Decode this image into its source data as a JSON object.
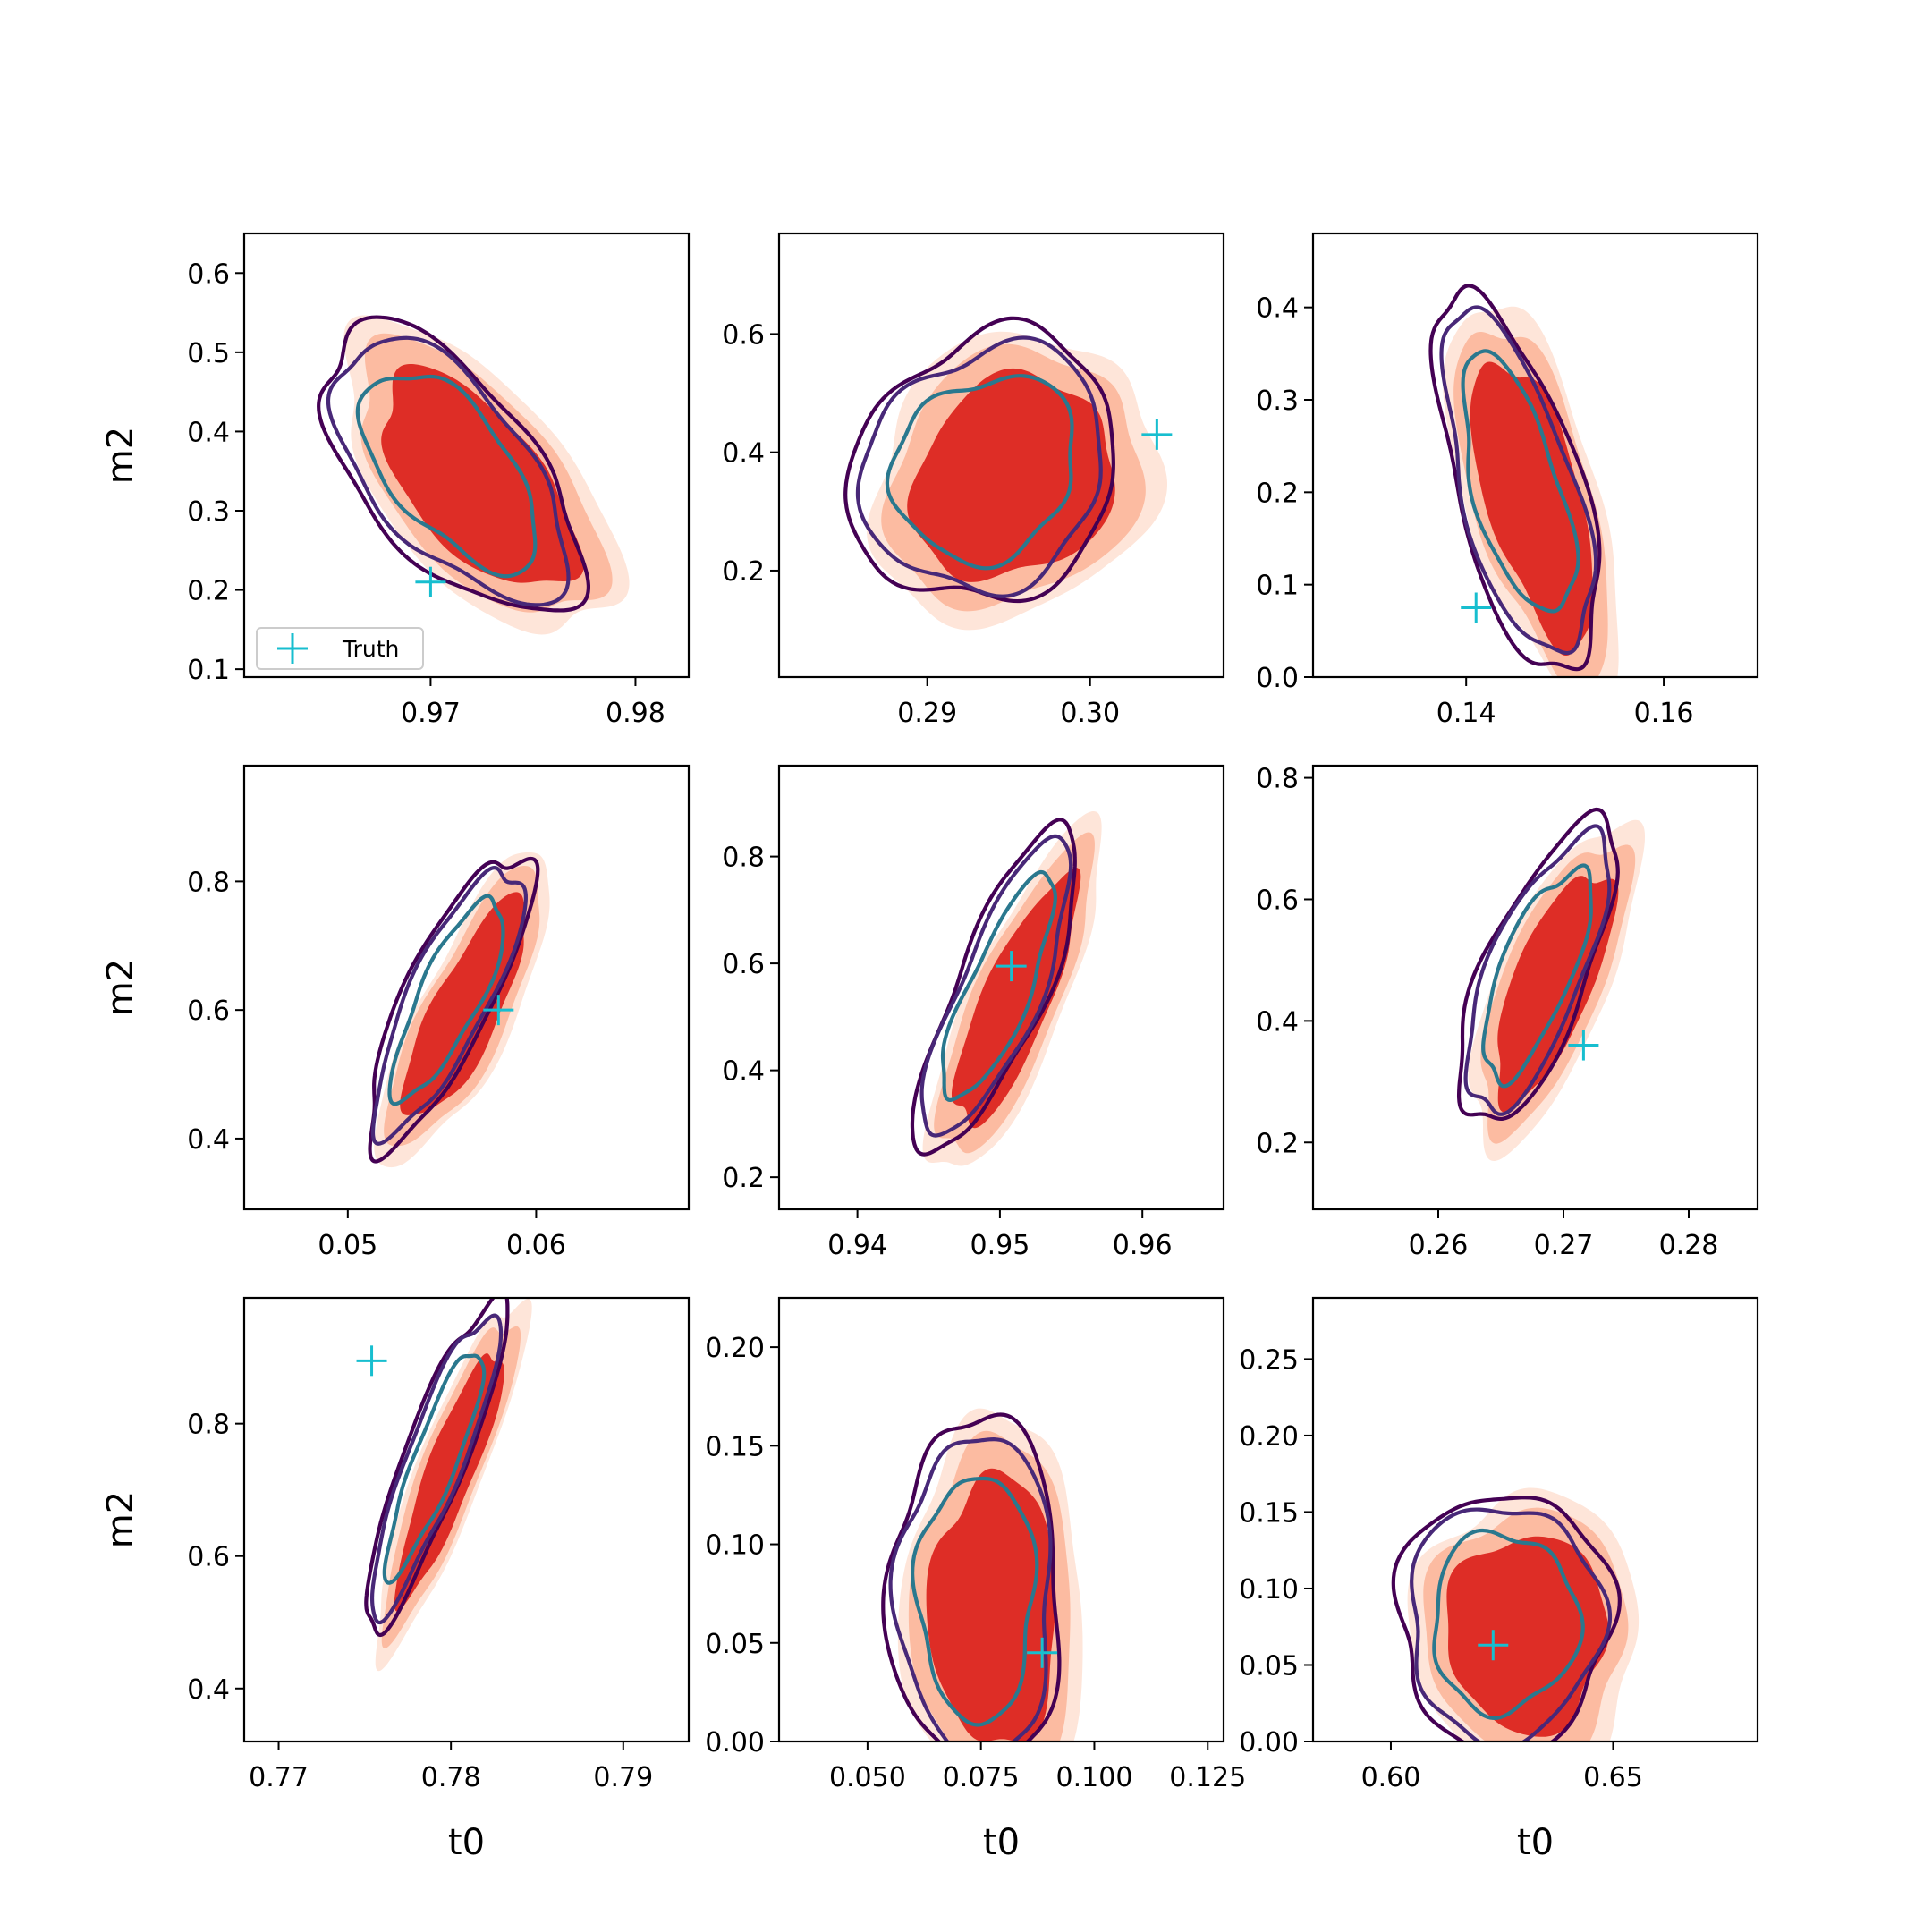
{
  "figure": {
    "xlabel": "t0",
    "ylabel": "m2",
    "legend_label": "Truth",
    "colors": {
      "fill_levels": [
        "#fee5d9",
        "#fcbba1",
        "#de2d26"
      ],
      "contour_levels": [
        "#440154",
        "#482878",
        "#2a788e"
      ],
      "truth_marker": "#17becf",
      "frame": "#000000"
    }
  },
  "chart_data": [
    {
      "type": "contour",
      "row": 0,
      "col": 0,
      "xlim": [
        0.9609,
        0.9826
      ],
      "ylim": [
        0.09,
        0.65
      ],
      "xticks": [
        0.97,
        0.98
      ],
      "xtick_labels": [
        "0.97",
        "0.98"
      ],
      "yticks": [
        0.1,
        0.2,
        0.3,
        0.4,
        0.5,
        0.6
      ],
      "ytick_labels": [
        "0.1",
        "0.2",
        "0.3",
        "0.4",
        "0.5",
        "0.6"
      ],
      "truth": [
        0.97,
        0.21
      ],
      "center": [
        0.9716,
        0.345
      ],
      "spread": [
        0.0055,
        0.16
      ],
      "tilt": -0.6,
      "legend": true
    },
    {
      "type": "contour",
      "row": 0,
      "col": 1,
      "xlim": [
        0.2809,
        0.3082
      ],
      "ylim": [
        0.02,
        0.77
      ],
      "xticks": [
        0.29,
        0.3
      ],
      "xtick_labels": [
        "0.29",
        "0.30"
      ],
      "yticks": [
        0.2,
        0.4,
        0.6
      ],
      "ytick_labels": [
        "0.2",
        "0.4",
        "0.6"
      ],
      "truth": [
        0.3041,
        0.43
      ],
      "center": [
        0.2944,
        0.365
      ],
      "spread": [
        0.0072,
        0.2
      ],
      "tilt": 0.15,
      "legend": false
    },
    {
      "type": "contour",
      "row": 0,
      "col": 2,
      "xlim": [
        0.1245,
        0.1695
      ],
      "ylim": [
        0.0,
        0.48
      ],
      "xticks": [
        0.14,
        0.16
      ],
      "xtick_labels": [
        "0.14",
        "0.16"
      ],
      "yticks": [
        0.0,
        0.1,
        0.2,
        0.3,
        0.4
      ],
      "ytick_labels": [
        "0.0",
        "0.1",
        "0.2",
        "0.3",
        "0.4"
      ],
      "truth": [
        0.141,
        0.075
      ],
      "center": [
        0.146,
        0.2
      ],
      "spread": [
        0.0072,
        0.18
      ],
      "tilt": -0.6,
      "legend": false
    },
    {
      "type": "contour",
      "row": 1,
      "col": 0,
      "xlim": [
        0.0445,
        0.0681
      ],
      "ylim": [
        0.29,
        0.98
      ],
      "xticks": [
        0.05,
        0.06
      ],
      "xtick_labels": [
        "0.05",
        "0.06"
      ],
      "yticks": [
        0.4,
        0.6,
        0.8
      ],
      "ytick_labels": [
        "0.4",
        "0.6",
        "0.8"
      ],
      "truth": [
        0.058,
        0.6
      ],
      "center": [
        0.0558,
        0.61
      ],
      "spread": [
        0.0038,
        0.2
      ],
      "tilt": 0.8,
      "legend": false
    },
    {
      "type": "contour",
      "row": 1,
      "col": 1,
      "xlim": [
        0.9345,
        0.9657
      ],
      "ylim": [
        0.14,
        0.97
      ],
      "xticks": [
        0.94,
        0.95,
        0.96
      ],
      "xtick_labels": [
        "0.94",
        "0.95",
        "0.96"
      ],
      "yticks": [
        0.2,
        0.4,
        0.6,
        0.8
      ],
      "ytick_labels": [
        "0.2",
        "0.4",
        "0.6",
        "0.8"
      ],
      "truth": [
        0.9508,
        0.595
      ],
      "center": [
        0.9505,
        0.54
      ],
      "spread": [
        0.005,
        0.27
      ],
      "tilt": 0.8,
      "legend": false
    },
    {
      "type": "contour",
      "row": 1,
      "col": 2,
      "xlim": [
        0.25,
        0.2855
      ],
      "ylim": [
        0.09,
        0.82
      ],
      "xticks": [
        0.26,
        0.27,
        0.28
      ],
      "xtick_labels": [
        "0.26",
        "0.27",
        "0.28"
      ],
      "yticks": [
        0.2,
        0.4,
        0.6,
        0.8
      ],
      "ytick_labels": [
        "0.2",
        "0.4",
        "0.6",
        "0.8"
      ],
      "truth": [
        0.2716,
        0.36
      ],
      "center": [
        0.2685,
        0.47
      ],
      "spread": [
        0.0055,
        0.22
      ],
      "tilt": 0.7,
      "legend": false
    },
    {
      "type": "contour",
      "row": 2,
      "col": 0,
      "xlim": [
        0.768,
        0.7938
      ],
      "ylim": [
        0.32,
        0.99
      ],
      "xticks": [
        0.77,
        0.78,
        0.79
      ],
      "xtick_labels": [
        "0.77",
        "0.78",
        "0.79"
      ],
      "yticks": [
        0.4,
        0.6,
        0.8
      ],
      "ytick_labels": [
        "0.4",
        "0.6",
        "0.8"
      ],
      "truth": [
        0.7754,
        0.895
      ],
      "center": [
        0.7795,
        0.735
      ],
      "spread": [
        0.0036,
        0.22
      ],
      "tilt": 0.88,
      "legend": false
    },
    {
      "type": "contour",
      "row": 2,
      "col": 1,
      "xlim": [
        0.0305,
        0.1285
      ],
      "ylim": [
        0.0,
        0.225
      ],
      "xticks": [
        0.05,
        0.075,
        0.1,
        0.125
      ],
      "xtick_labels": [
        "0.050",
        "0.075",
        "0.100",
        "0.125"
      ],
      "yticks": [
        0.0,
        0.05,
        0.1,
        0.15,
        0.2
      ],
      "ytick_labels": [
        "0.00",
        "0.05",
        "0.10",
        "0.15",
        "0.20"
      ],
      "truth": [
        0.0885,
        0.045
      ],
      "center": [
        0.076,
        0.07
      ],
      "spread": [
        0.0165,
        0.08
      ],
      "tilt": 0.0,
      "legend": false
    },
    {
      "type": "contour",
      "row": 2,
      "col": 2,
      "xlim": [
        0.5825,
        0.6825
      ],
      "ylim": [
        0.0,
        0.29
      ],
      "xticks": [
        0.6,
        0.65
      ],
      "xtick_labels": [
        "0.60",
        "0.65"
      ],
      "yticks": [
        0.0,
        0.05,
        0.1,
        0.15,
        0.2,
        0.25
      ],
      "ytick_labels": [
        "0.00",
        "0.05",
        "0.10",
        "0.15",
        "0.20",
        "0.25"
      ],
      "truth": [
        0.623,
        0.063
      ],
      "center": [
        0.628,
        0.075
      ],
      "spread": [
        0.021,
        0.075
      ],
      "tilt": 0.0,
      "legend": false
    }
  ]
}
